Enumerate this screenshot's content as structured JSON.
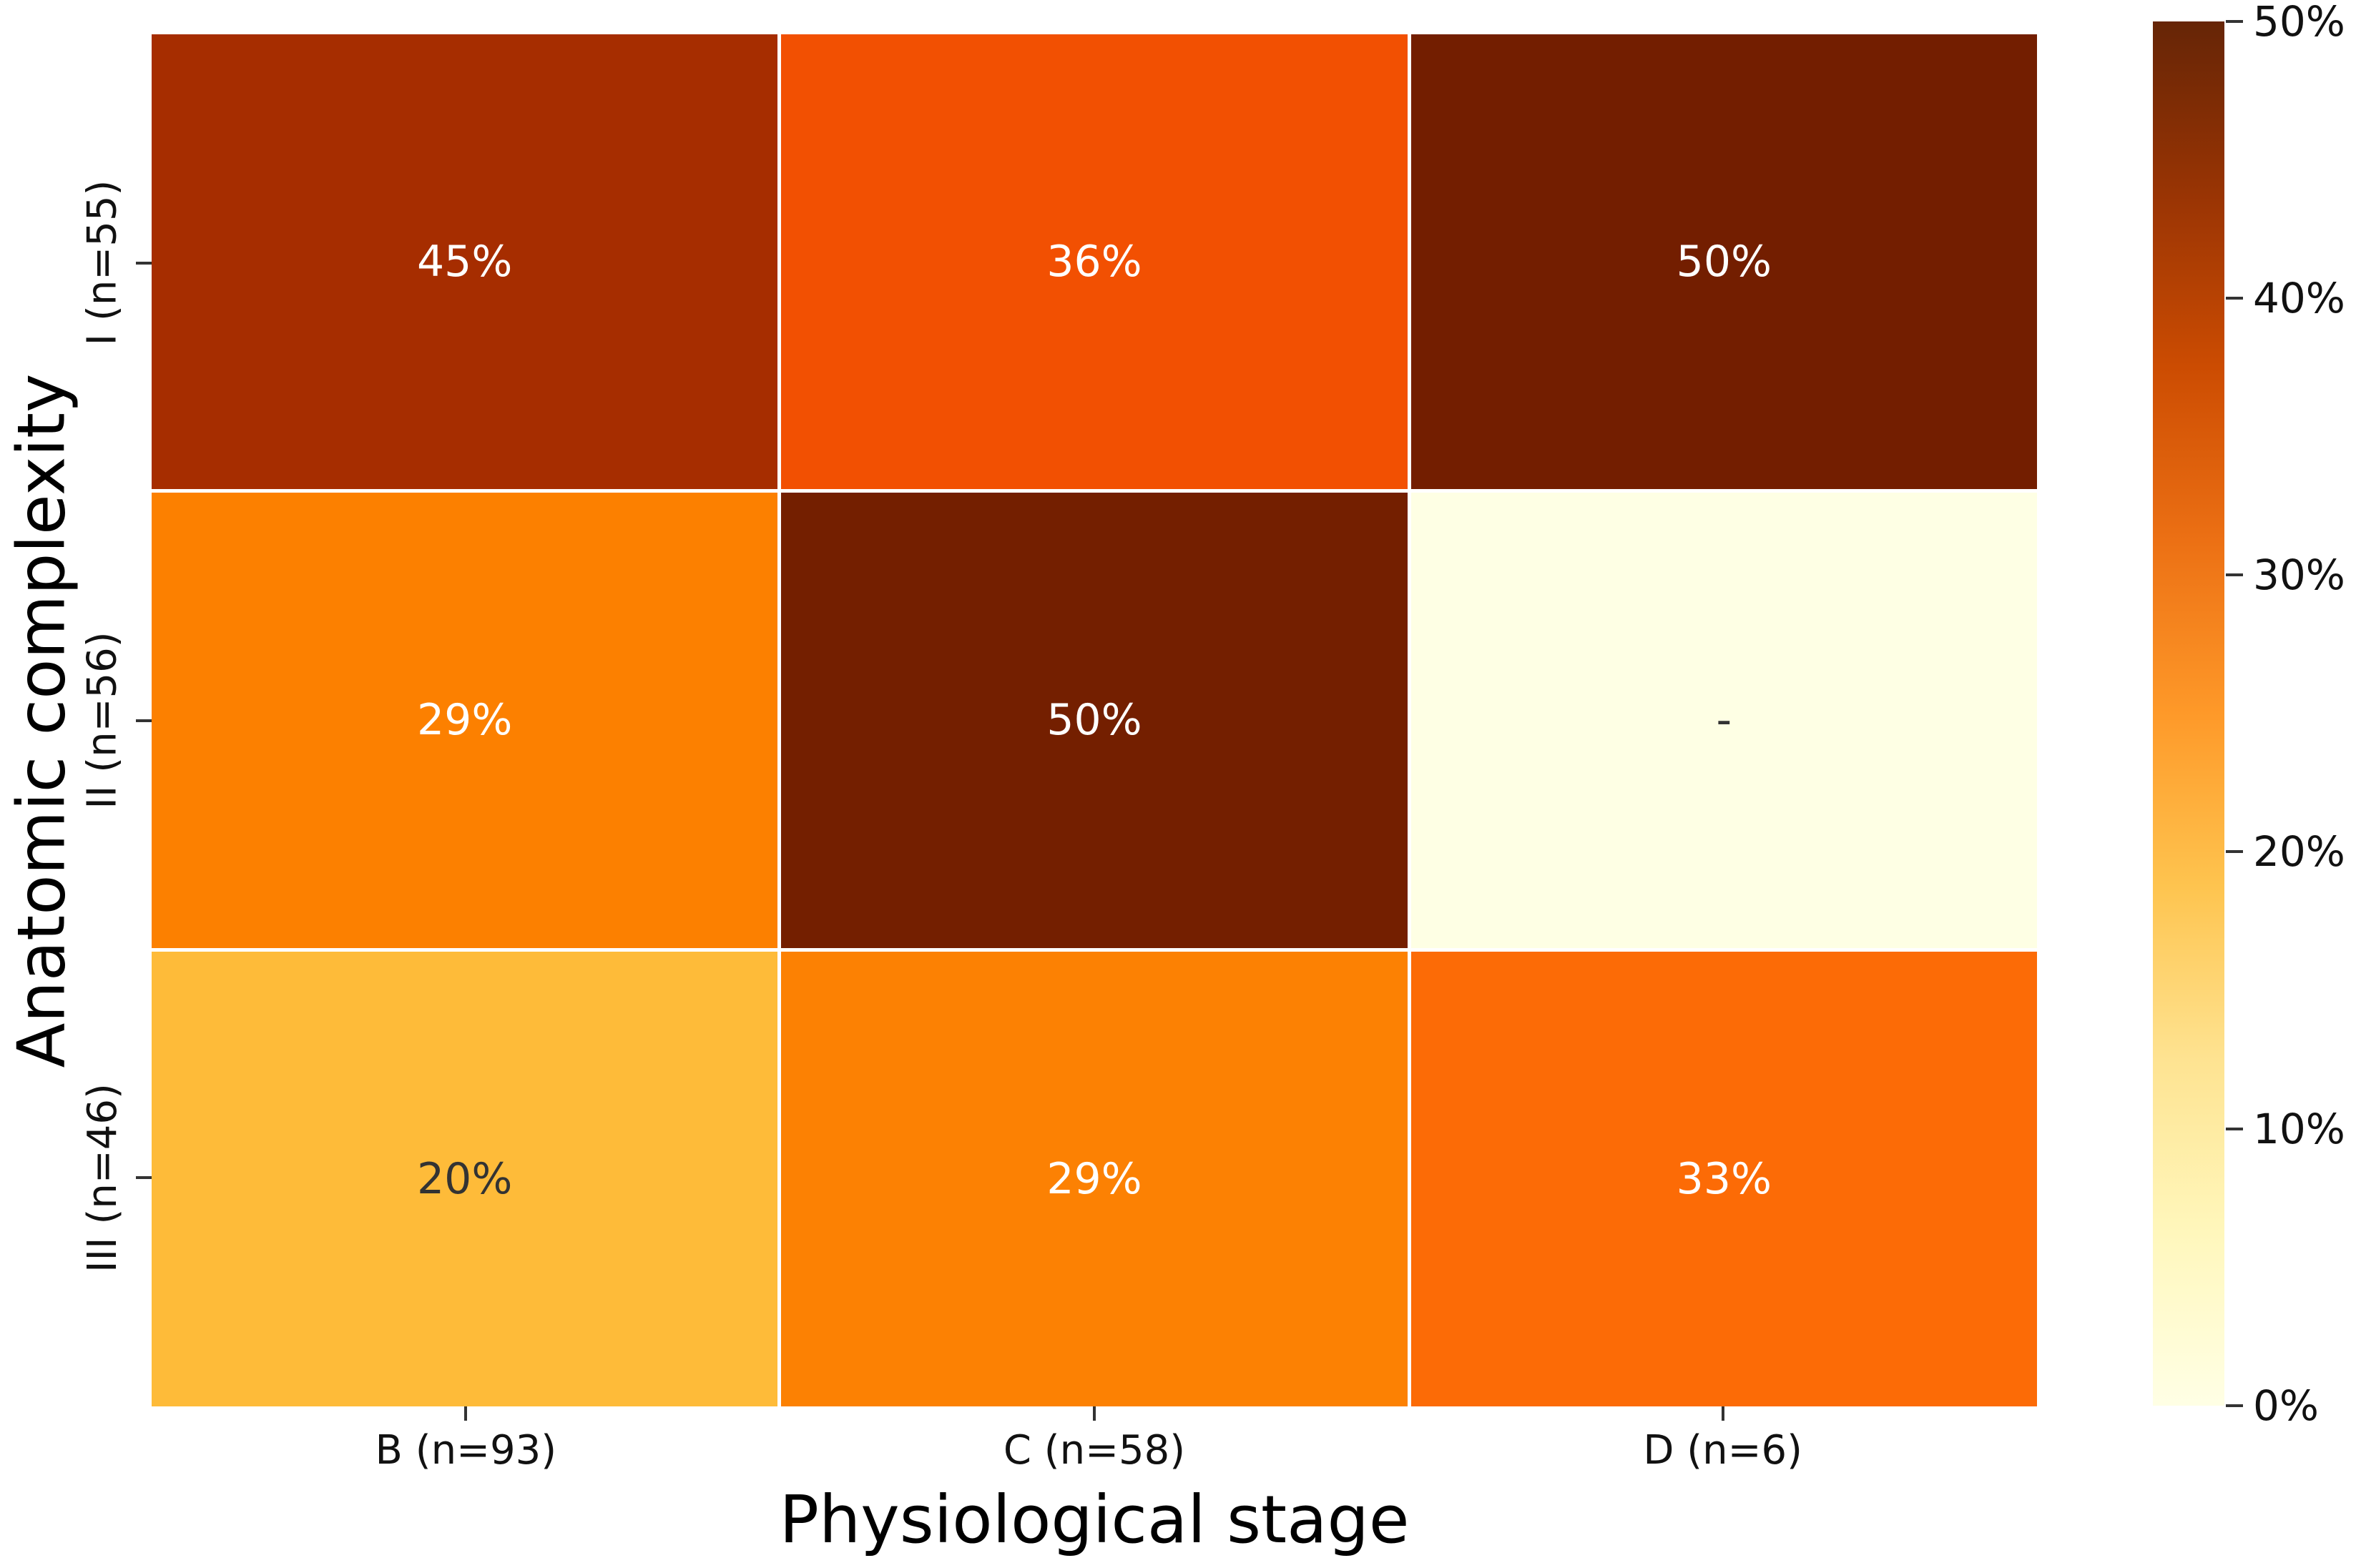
{
  "chart_data": {
    "type": "heatmap",
    "xlabel": "Physiological stage",
    "ylabel": "Anatomic complexity",
    "columns": [
      "B (n=93)",
      "C (n=58)",
      "D (n=6)"
    ],
    "rows": [
      "I (n=55)",
      "II (n=56)",
      "III (n=46)"
    ],
    "values_percent": [
      [
        45,
        36,
        50
      ],
      [
        29,
        50,
        null
      ],
      [
        20,
        29,
        33
      ]
    ],
    "cells": [
      {
        "row": "I (n=55)",
        "col": "B (n=93)",
        "value": 45,
        "label": "45%",
        "color": "#a62d00",
        "text_color": "#ffffff"
      },
      {
        "row": "I (n=55)",
        "col": "C (n=58)",
        "value": 36,
        "label": "36%",
        "color": "#f25002",
        "text_color": "#ffffff"
      },
      {
        "row": "I (n=55)",
        "col": "D (n=6)",
        "value": 50,
        "label": "50%",
        "color": "#731e00",
        "text_color": "#ffffff"
      },
      {
        "row": "II (n=56)",
        "col": "B (n=93)",
        "value": 29,
        "label": "29%",
        "color": "#fc8000",
        "text_color": "#ffffff"
      },
      {
        "row": "II (n=56)",
        "col": "C (n=58)",
        "value": 50,
        "label": "50%",
        "color": "#741f00",
        "text_color": "#ffffff"
      },
      {
        "row": "II (n=56)",
        "col": "D (n=6)",
        "value": null,
        "label": "-",
        "color": "#feffe4",
        "text_color": "#333333"
      },
      {
        "row": "III (n=46)",
        "col": "B (n=93)",
        "value": 20,
        "label": "20%",
        "color": "#febb39",
        "text_color": "#333333"
      },
      {
        "row": "III (n=46)",
        "col": "C (n=58)",
        "value": 29,
        "label": "29%",
        "color": "#fc8103",
        "text_color": "#ffffff"
      },
      {
        "row": "III (n=46)",
        "col": "D (n=6)",
        "value": 33,
        "label": "33%",
        "color": "#fc6b06",
        "text_color": "#ffffff"
      }
    ],
    "colorbar": {
      "min_label": "0%",
      "max_label": "50%",
      "ticks": [
        "50%",
        "40%",
        "30%",
        "20%",
        "10%",
        "0%"
      ],
      "stops_bottom_to_top": [
        "#ffffe5",
        "#fff7bc",
        "#fee391",
        "#fec44f",
        "#fe9929",
        "#ec7014",
        "#cc4c02",
        "#993404",
        "#662506"
      ]
    },
    "grid_line_color": "#ffffff",
    "legend_position": "right",
    "grid": false
  }
}
